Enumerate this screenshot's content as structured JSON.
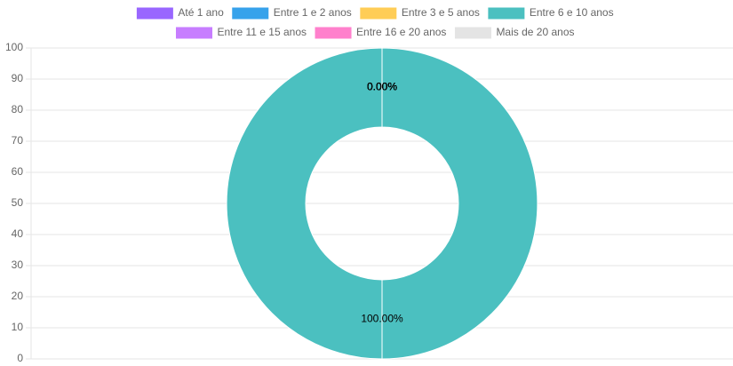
{
  "chart_data": {
    "type": "doughnut",
    "categories": [
      "Até 1 ano",
      "Entre 1 e 2 anos",
      "Entre 3 e 5 anos",
      "Entre 6 e 10 anos",
      "Entre 11 e 15 anos",
      "Entre 16 e 20 anos",
      "Mais de 20 anos"
    ],
    "colors": [
      "#9966ff",
      "#36a2eb",
      "#ffcd56",
      "#4bc0c0",
      "#c77dff",
      "#ff80cc",
      "#e4e4e4"
    ],
    "values": [
      0,
      0,
      0,
      100,
      0,
      0,
      0
    ],
    "value_labels": [
      "0.00%",
      "0.00%",
      "0.00%",
      "100.00%",
      "0.00%",
      "0.00%",
      "0.00%"
    ],
    "ylim": [
      0,
      100
    ],
    "yticks": [
      0,
      10,
      20,
      30,
      40,
      50,
      60,
      70,
      80,
      90,
      100
    ],
    "grid": true,
    "legend": "top"
  }
}
